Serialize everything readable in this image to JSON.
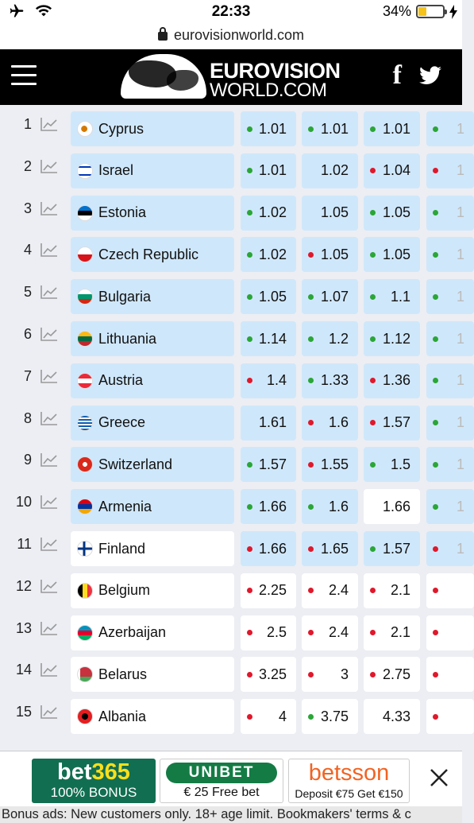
{
  "status_bar": {
    "time": "22:33",
    "battery_percent": "34%",
    "battery_level": 0.34,
    "icons": [
      "airplane-icon",
      "wifi-icon",
      "charging-bolt-icon"
    ]
  },
  "browser": {
    "url": "eurovisionworld.com"
  },
  "header": {
    "logo_line1": "EUROVISION",
    "logo_line2": "WORLD.COM",
    "menu_icon": "hamburger-icon",
    "social": [
      "facebook-icon",
      "twitter-icon"
    ]
  },
  "colors": {
    "highlight_bg": "#cfe7fb",
    "green_dot": "#2aa636",
    "red_dot": "#e0182b",
    "header_bg": "#000000"
  },
  "rows": [
    {
      "rank": "1",
      "country": "Cyprus",
      "hl": true,
      "odds": [
        {
          "v": "1.01",
          "d": "green",
          "hl": true
        },
        {
          "v": "1.01",
          "d": "green",
          "hl": true
        },
        {
          "v": "1.01",
          "d": "green",
          "hl": true
        },
        {
          "v": "1",
          "d": "green",
          "hl": true
        }
      ]
    },
    {
      "rank": "2",
      "country": "Israel",
      "hl": true,
      "odds": [
        {
          "v": "1.01",
          "d": "green",
          "hl": true
        },
        {
          "v": "1.02",
          "d": "none",
          "hl": true
        },
        {
          "v": "1.04",
          "d": "red",
          "hl": true
        },
        {
          "v": "1",
          "d": "red",
          "hl": true
        }
      ]
    },
    {
      "rank": "3",
      "country": "Estonia",
      "hl": true,
      "odds": [
        {
          "v": "1.02",
          "d": "green",
          "hl": true
        },
        {
          "v": "1.05",
          "d": "none",
          "hl": true
        },
        {
          "v": "1.05",
          "d": "green",
          "hl": true
        },
        {
          "v": "1",
          "d": "green",
          "hl": true
        }
      ]
    },
    {
      "rank": "4",
      "country": "Czech Republic",
      "hl": true,
      "odds": [
        {
          "v": "1.02",
          "d": "green",
          "hl": true
        },
        {
          "v": "1.05",
          "d": "red",
          "hl": true
        },
        {
          "v": "1.05",
          "d": "green",
          "hl": true
        },
        {
          "v": "1",
          "d": "green",
          "hl": true
        }
      ]
    },
    {
      "rank": "5",
      "country": "Bulgaria",
      "hl": true,
      "odds": [
        {
          "v": "1.05",
          "d": "green",
          "hl": true
        },
        {
          "v": "1.07",
          "d": "green",
          "hl": true
        },
        {
          "v": "1.1",
          "d": "green",
          "hl": true
        },
        {
          "v": "1",
          "d": "green",
          "hl": true
        }
      ]
    },
    {
      "rank": "6",
      "country": "Lithuania",
      "hl": true,
      "odds": [
        {
          "v": "1.14",
          "d": "green",
          "hl": true
        },
        {
          "v": "1.2",
          "d": "green",
          "hl": true
        },
        {
          "v": "1.12",
          "d": "green",
          "hl": true
        },
        {
          "v": "1",
          "d": "green",
          "hl": true
        }
      ]
    },
    {
      "rank": "7",
      "country": "Austria",
      "hl": true,
      "odds": [
        {
          "v": "1.4",
          "d": "red",
          "hl": true
        },
        {
          "v": "1.33",
          "d": "green",
          "hl": true
        },
        {
          "v": "1.36",
          "d": "red",
          "hl": true
        },
        {
          "v": "1",
          "d": "green",
          "hl": true
        }
      ]
    },
    {
      "rank": "8",
      "country": "Greece",
      "hl": true,
      "odds": [
        {
          "v": "1.61",
          "d": "none",
          "hl": true
        },
        {
          "v": "1.6",
          "d": "red",
          "hl": true
        },
        {
          "v": "1.57",
          "d": "red",
          "hl": true
        },
        {
          "v": "1",
          "d": "green",
          "hl": true
        }
      ]
    },
    {
      "rank": "9",
      "country": "Switzerland",
      "hl": true,
      "odds": [
        {
          "v": "1.57",
          "d": "green",
          "hl": true
        },
        {
          "v": "1.55",
          "d": "red",
          "hl": true
        },
        {
          "v": "1.5",
          "d": "green",
          "hl": true
        },
        {
          "v": "1",
          "d": "green",
          "hl": true
        }
      ]
    },
    {
      "rank": "10",
      "country": "Armenia",
      "hl": true,
      "odds": [
        {
          "v": "1.66",
          "d": "green",
          "hl": true
        },
        {
          "v": "1.6",
          "d": "green",
          "hl": true
        },
        {
          "v": "1.66",
          "d": "none",
          "hl": false
        },
        {
          "v": "1",
          "d": "green",
          "hl": true
        }
      ]
    },
    {
      "rank": "11",
      "country": "Finland",
      "hl": false,
      "odds": [
        {
          "v": "1.66",
          "d": "red",
          "hl": true
        },
        {
          "v": "1.65",
          "d": "red",
          "hl": true
        },
        {
          "v": "1.57",
          "d": "green",
          "hl": true
        },
        {
          "v": "1",
          "d": "red",
          "hl": true
        }
      ]
    },
    {
      "rank": "12",
      "country": "Belgium",
      "hl": false,
      "odds": [
        {
          "v": "2.25",
          "d": "red",
          "hl": false
        },
        {
          "v": "2.4",
          "d": "red",
          "hl": false
        },
        {
          "v": "2.1",
          "d": "red",
          "hl": false
        },
        {
          "v": "",
          "d": "red",
          "hl": false
        }
      ]
    },
    {
      "rank": "13",
      "country": "Azerbaijan",
      "hl": false,
      "odds": [
        {
          "v": "2.5",
          "d": "red",
          "hl": false
        },
        {
          "v": "2.4",
          "d": "red",
          "hl": false
        },
        {
          "v": "2.1",
          "d": "red",
          "hl": false
        },
        {
          "v": "",
          "d": "red",
          "hl": false
        }
      ]
    },
    {
      "rank": "14",
      "country": "Belarus",
      "hl": false,
      "odds": [
        {
          "v": "3.25",
          "d": "red",
          "hl": false
        },
        {
          "v": "3",
          "d": "red",
          "hl": false
        },
        {
          "v": "2.75",
          "d": "red",
          "hl": false
        },
        {
          "v": "",
          "d": "red",
          "hl": false
        }
      ]
    },
    {
      "rank": "15",
      "country": "Albania",
      "hl": false,
      "odds": [
        {
          "v": "4",
          "d": "red",
          "hl": false
        },
        {
          "v": "3.75",
          "d": "green",
          "hl": false
        },
        {
          "v": "4.33",
          "d": "none",
          "hl": false
        },
        {
          "v": "",
          "d": "red",
          "hl": false
        }
      ]
    }
  ],
  "ads": {
    "bet365": {
      "brand_a": "bet",
      "brand_b": "365",
      "offer": "100% BONUS"
    },
    "unibet": {
      "brand": "UNIBET",
      "offer": "€ 25 Free bet"
    },
    "betsson": {
      "brand": "betsson",
      "offer": "Deposit €75 Get €150"
    },
    "close_icon": "close-icon",
    "disclaimer": "Bonus ads: New customers only. 18+ age limit. Bookmakers' terms & c"
  }
}
